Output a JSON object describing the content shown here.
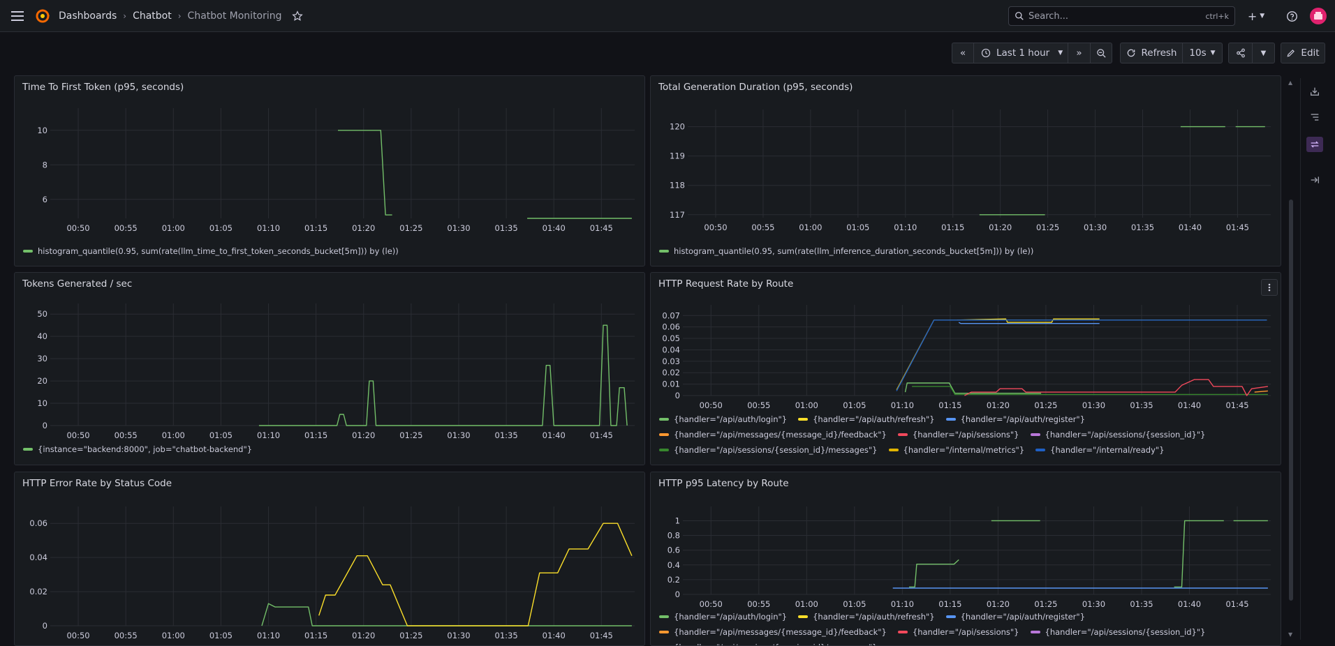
{
  "topbar": {
    "breadcrumbs": [
      "Dashboards",
      "Chatbot",
      "Chatbot Monitoring"
    ],
    "search_placeholder": "Search...",
    "search_shortcut": "ctrl+k",
    "plus_label": "+"
  },
  "toolbar": {
    "time_range": "Last 1 hour",
    "refresh_label": "Refresh",
    "refresh_interval": "10s",
    "edit_label": "Edit"
  },
  "colors": {
    "green": "#73bf69",
    "yellow": "#fade2a",
    "blue": "#5794f2",
    "orange": "#ff9830",
    "red": "#f2495c",
    "purple": "#b877d9",
    "darkgreen": "#37872d",
    "gold": "#e0b400",
    "navy": "#1f60c4"
  },
  "panels": [
    {
      "title": "Time To First Token (p95, seconds)",
      "legend": [
        {
          "label": "histogram_quantile(0.95, sum(rate(llm_time_to_first_token_seconds_bucket[5m])) by (le))",
          "color": "green"
        }
      ],
      "chart_data": {
        "type": "line",
        "x_ticks": [
          "00:50",
          "00:55",
          "01:00",
          "01:05",
          "01:10",
          "01:15",
          "01:20",
          "01:25",
          "01:30",
          "01:35",
          "01:40",
          "01:45"
        ],
        "y_ticks": [
          6,
          8,
          10
        ],
        "ylim": [
          4.9,
          10.8
        ],
        "series": [
          {
            "name": "histogram_quantile(0.95, sum(rate(llm_time_to_first_token_seconds_bucket[5m])) by (le))",
            "color": "green",
            "segments": [
              [
                [
                  17.3,
                  10
                ],
                [
                  21.8,
                  10
                ],
                [
                  22.3,
                  5.1
                ],
                [
                  23,
                  5.1
                ]
              ],
              [
                [
                  37.2,
                  4.9
                ],
                [
                  48.2,
                  4.9
                ]
              ]
            ]
          }
        ]
      }
    },
    {
      "title": "Total Generation Duration (p95, seconds)",
      "legend": [
        {
          "label": "histogram_quantile(0.95, sum(rate(llm_inference_duration_seconds_bucket[5m])) by (le))",
          "color": "green"
        }
      ],
      "chart_data": {
        "type": "line",
        "x_ticks": [
          "00:50",
          "00:55",
          "01:00",
          "01:05",
          "01:10",
          "01:15",
          "01:20",
          "01:25",
          "01:30",
          "01:35",
          "01:40",
          "01:45"
        ],
        "y_ticks": [
          117,
          118,
          119,
          120
        ],
        "ylim": [
          116.9,
          120.3
        ],
        "series": [
          {
            "name": "histogram_quantile(0.95, sum(rate(llm_inference_duration_seconds_bucket[5m])) by (le))",
            "color": "green",
            "segments": [
              [
                [
                  17.8,
                  117
                ],
                [
                  24.7,
                  117
                ]
              ],
              [
                [
                  39,
                  120
                ],
                [
                  43.7,
                  120
                ]
              ],
              [
                [
                  44.8,
                  120
                ],
                [
                  47.9,
                  120
                ]
              ]
            ]
          }
        ]
      }
    },
    {
      "title": "Tokens Generated / sec",
      "legend": [
        {
          "label": "{instance=\"backend:8000\", job=\"chatbot-backend\"}",
          "color": "green"
        }
      ],
      "chart_data": {
        "type": "line",
        "x_ticks": [
          "00:50",
          "00:55",
          "01:00",
          "01:05",
          "01:10",
          "01:15",
          "01:20",
          "01:25",
          "01:30",
          "01:35",
          "01:40",
          "01:45"
        ],
        "y_ticks": [
          0,
          10,
          20,
          30,
          40,
          50
        ],
        "ylim": [
          0,
          51
        ],
        "series": [
          {
            "name": "{instance=\"backend:8000\", job=\"chatbot-backend\"}",
            "color": "green",
            "segments": [
              [
                [
                  9,
                  0
                ],
                [
                  17.2,
                  0
                ],
                [
                  17.5,
                  5
                ],
                [
                  17.9,
                  5
                ],
                [
                  18.2,
                  0
                ],
                [
                  20.3,
                  0
                ],
                [
                  20.6,
                  20
                ],
                [
                  21,
                  20
                ],
                [
                  21.3,
                  0
                ],
                [
                  38.8,
                  0
                ],
                [
                  39.2,
                  27
                ],
                [
                  39.6,
                  27
                ],
                [
                  40,
                  0
                ],
                [
                  44.8,
                  0
                ],
                [
                  45.2,
                  45
                ],
                [
                  45.6,
                  45
                ],
                [
                  46,
                  0
                ],
                [
                  46.6,
                  0
                ],
                [
                  46.9,
                  17
                ],
                [
                  47.4,
                  17
                ],
                [
                  47.7,
                  0
                ]
              ]
            ]
          }
        ]
      }
    },
    {
      "title": "HTTP Request Rate by Route",
      "legend": [
        {
          "label": "{handler=\"/api/auth/login\"}",
          "color": "green"
        },
        {
          "label": "{handler=\"/api/auth/refresh\"}",
          "color": "yellow"
        },
        {
          "label": "{handler=\"/api/auth/register\"}",
          "color": "blue"
        },
        {
          "label": "{handler=\"/api/messages/{message_id}/feedback\"}",
          "color": "orange"
        },
        {
          "label": "{handler=\"/api/sessions\"}",
          "color": "red"
        },
        {
          "label": "{handler=\"/api/sessions/{session_id}\"}",
          "color": "purple"
        },
        {
          "label": "{handler=\"/api/sessions/{session_id}/messages\"}",
          "color": "darkgreen"
        },
        {
          "label": "{handler=\"/internal/metrics\"}",
          "color": "gold"
        },
        {
          "label": "{handler=\"/internal/ready\"}",
          "color": "navy"
        }
      ],
      "chart_data": {
        "type": "line",
        "x_ticks": [
          "00:50",
          "00:55",
          "01:00",
          "01:05",
          "01:10",
          "01:15",
          "01:20",
          "01:25",
          "01:30",
          "01:35",
          "01:40",
          "01:45"
        ],
        "y_ticks": [
          0,
          0.01,
          0.02,
          0.03,
          0.04,
          0.05,
          0.06,
          0.07
        ],
        "ylim": [
          0,
          0.072
        ],
        "series": [
          {
            "name": "{handler=\"/internal/metrics\"}",
            "color": "gold",
            "segments": [
              [
                [
                  9.4,
                  0.005
                ],
                [
                  13.3,
                  0.066
                ],
                [
                  48.1,
                  0.066
                ]
              ]
            ]
          },
          {
            "name": "{handler=\"/api/auth/refresh\"}",
            "color": "yellow",
            "segments": [
              [
                [
                  15.7,
                  0.066
                ],
                [
                  20.8,
                  0.067
                ],
                [
                  21,
                  0.064
                ],
                [
                  25.6,
                  0.064
                ],
                [
                  25.8,
                  0.067
                ],
                [
                  30.6,
                  0.067
                ]
              ]
            ]
          },
          {
            "name": "{handler=\"/internal/ready\"}",
            "color": "navy",
            "segments": [
              [
                [
                  9.4,
                  0.004
                ],
                [
                  13.3,
                  0.066
                ],
                [
                  48.1,
                  0.066
                ]
              ]
            ]
          },
          {
            "name": "{handler=\"/api/auth/register\"}",
            "color": "blue",
            "segments": [
              [
                [
                  15.9,
                  0.064
                ],
                [
                  16.1,
                  0.063
                ],
                [
                  20.8,
                  0.063
                ],
                [
                  25.9,
                  0.063
                ],
                [
                  30.6,
                  0.063
                ]
              ]
            ]
          },
          {
            "name": "{handler=\"/api/auth/login\"}",
            "color": "green",
            "segments": [
              [
                [
                  10.3,
                  0.003
                ],
                [
                  10.5,
                  0.011
                ],
                [
                  14.9,
                  0.011
                ],
                [
                  15.5,
                  0.002
                ],
                [
                  21,
                  0.002
                ],
                [
                  24.5,
                  0.002
                ]
              ]
            ]
          },
          {
            "name": "{handler=\"/api/sessions/{session_id}/messages\"}",
            "color": "darkgreen",
            "segments": [
              [
                [
                  11,
                  0.008
                ],
                [
                  15,
                  0.008
                ],
                [
                  15.5,
                  0.001
                ],
                [
                  48.2,
                  0.001
                ]
              ]
            ]
          },
          {
            "name": "{handler=\"/api/sessions\"}",
            "color": "red",
            "segments": [
              [
                [
                  16.5,
                  0
                ],
                [
                  17.2,
                  0.003
                ],
                [
                  19.8,
                  0.003
                ],
                [
                  20.2,
                  0.006
                ],
                [
                  22.5,
                  0.006
                ],
                [
                  22.9,
                  0.003
                ],
                [
                  38.5,
                  0.003
                ],
                [
                  39.2,
                  0.009
                ],
                [
                  40.5,
                  0.014
                ],
                [
                  42,
                  0.014
                ],
                [
                  42.5,
                  0.008
                ],
                [
                  45.5,
                  0.008
                ],
                [
                  46,
                  0
                ],
                [
                  46.5,
                  0.006
                ],
                [
                  48.2,
                  0.008
                ]
              ]
            ]
          },
          {
            "name": "{handler=\"/api/messages/{message_id}/feedback\"}",
            "color": "orange",
            "segments": [
              [
                [
                  46.8,
                  0.003
                ],
                [
                  48.2,
                  0.004
                ]
              ]
            ]
          }
        ]
      }
    },
    {
      "title": "HTTP Error Rate by Status Code",
      "legend": [],
      "chart_data": {
        "type": "line",
        "x_ticks": [
          "00:50",
          "00:55",
          "01:00",
          "01:05",
          "01:10",
          "01:15",
          "01:20",
          "01:25",
          "01:30",
          "01:35",
          "01:40",
          "01:45"
        ],
        "y_ticks": [
          0,
          0.02,
          0.04,
          0.06
        ],
        "ylim": [
          0,
          0.065
        ],
        "series": [
          {
            "color": "green",
            "segments": [
              [
                [
                  9.3,
                  0
                ],
                [
                  10,
                  0.013
                ],
                [
                  10.7,
                  0.011
                ],
                [
                  14.2,
                  0.011
                ],
                [
                  14.6,
                  0
                ],
                [
                  48.2,
                  0
                ]
              ]
            ]
          },
          {
            "color": "yellow",
            "segments": [
              [
                [
                  15.3,
                  0.006
                ],
                [
                  16,
                  0.018
                ],
                [
                  17,
                  0.018
                ],
                [
                  19.3,
                  0.041
                ],
                [
                  20.4,
                  0.041
                ],
                [
                  22,
                  0.024
                ],
                [
                  22.8,
                  0.024
                ],
                [
                  24.6,
                  0
                ],
                [
                  37.3,
                  0
                ],
                [
                  38.5,
                  0.031
                ],
                [
                  40.4,
                  0.031
                ],
                [
                  41.6,
                  0.045
                ],
                [
                  43.6,
                  0.045
                ],
                [
                  45.2,
                  0.06
                ],
                [
                  46.7,
                  0.06
                ],
                [
                  48.2,
                  0.041
                ]
              ]
            ]
          }
        ]
      }
    },
    {
      "title": "HTTP p95 Latency by Route",
      "legend": [
        {
          "label": "{handler=\"/api/auth/login\"}",
          "color": "green"
        },
        {
          "label": "{handler=\"/api/auth/refresh\"}",
          "color": "yellow"
        },
        {
          "label": "{handler=\"/api/auth/register\"}",
          "color": "blue"
        },
        {
          "label": "{handler=\"/api/messages/{message_id}/feedback\"}",
          "color": "orange"
        },
        {
          "label": "{handler=\"/api/sessions\"}",
          "color": "red"
        },
        {
          "label": "{handler=\"/api/sessions/{session_id}\"}",
          "color": "purple"
        },
        {
          "label": "{handler=\"/api/sessions/{session_id}/messages\"}",
          "color": "darkgreen"
        }
      ],
      "chart_data": {
        "type": "line",
        "x_ticks": [
          "00:50",
          "00:55",
          "01:00",
          "01:05",
          "01:10",
          "01:15",
          "01:20",
          "01:25",
          "01:30",
          "01:35",
          "01:40",
          "01:45"
        ],
        "y_ticks": [
          0,
          0.2,
          0.4,
          0.6,
          0.8,
          1
        ],
        "ylim": [
          0,
          1.08
        ],
        "series": [
          {
            "color": "green",
            "segments": [
              [
                [
                  10.7,
                  0.1
                ],
                [
                  11.3,
                  0.1
                ],
                [
                  11.5,
                  0.41
                ],
                [
                  15.4,
                  0.41
                ],
                [
                  15.9,
                  0.47
                ]
              ],
              [
                [
                  19.3,
                  1
                ],
                [
                  24.4,
                  1
                ]
              ],
              [
                [
                  38.4,
                  0.1
                ],
                [
                  39.2,
                  0.1
                ],
                [
                  39.5,
                  1
                ],
                [
                  43.6,
                  1
                ]
              ],
              [
                [
                  44.6,
                  1
                ],
                [
                  48.2,
                  1
                ]
              ]
            ]
          },
          {
            "color": "blue",
            "segments": [
              [
                [
                  9,
                  0.085
                ],
                [
                  48.2,
                  0.085
                ]
              ]
            ]
          }
        ]
      }
    }
  ]
}
